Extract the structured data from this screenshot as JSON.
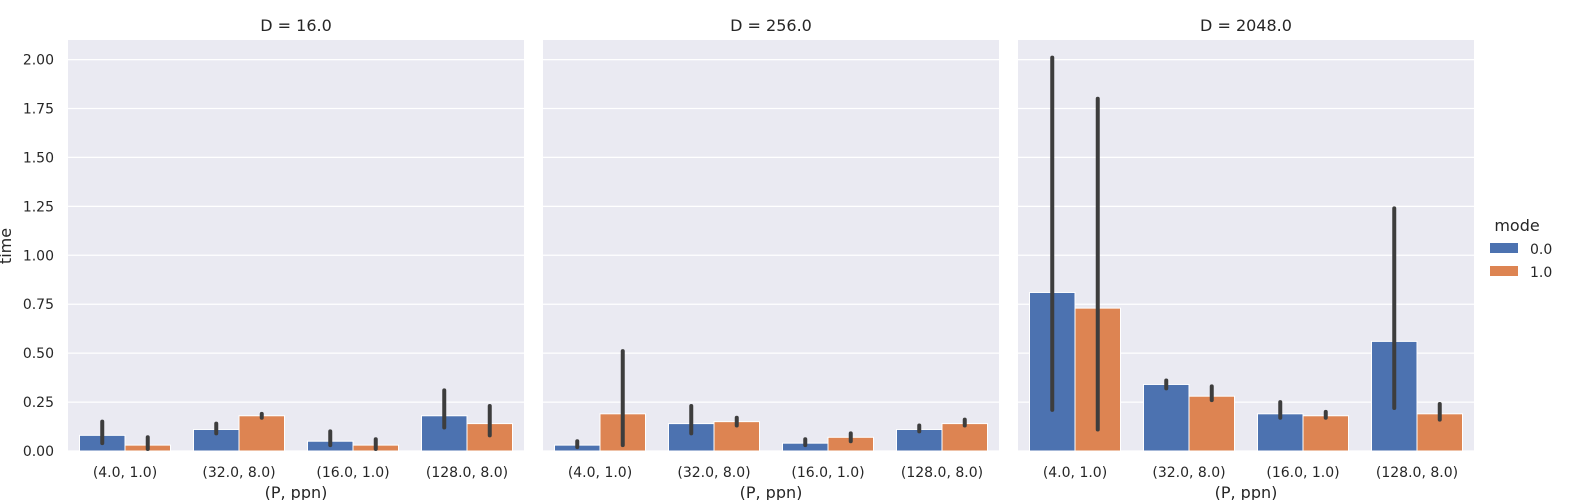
{
  "chart_data": {
    "type": "bar",
    "ylabel": "time",
    "xlabel": "(P, ppn)",
    "ylim": [
      0,
      2.1
    ],
    "yticks": [
      "0.00",
      "0.25",
      "0.50",
      "0.75",
      "1.00",
      "1.25",
      "1.50",
      "1.75",
      "2.00"
    ],
    "grid": true,
    "legend": {
      "title": "mode",
      "placement": "right",
      "entries": [
        {
          "label": "0.0",
          "color": "#4c72b0"
        },
        {
          "label": "1.0",
          "color": "#dd8452"
        }
      ]
    },
    "categories": [
      "(4.0, 1.0)",
      "(32.0, 8.0)",
      "(16.0, 1.0)",
      "(128.0, 8.0)"
    ],
    "panels": [
      {
        "title": "D = 16.0",
        "series": [
          {
            "mode": "0.0",
            "values": [
              0.08,
              0.11,
              0.05,
              0.18
            ],
            "ci_low": [
              0.04,
              0.09,
              0.03,
              0.12
            ],
            "ci_high": [
              0.15,
              0.14,
              0.1,
              0.31
            ]
          },
          {
            "mode": "1.0",
            "values": [
              0.03,
              0.18,
              0.03,
              0.14
            ],
            "ci_low": [
              0.01,
              0.17,
              0.01,
              0.08
            ],
            "ci_high": [
              0.07,
              0.19,
              0.06,
              0.23
            ]
          }
        ]
      },
      {
        "title": "D = 256.0",
        "series": [
          {
            "mode": "0.0",
            "values": [
              0.03,
              0.14,
              0.04,
              0.11
            ],
            "ci_low": [
              0.02,
              0.09,
              0.03,
              0.1
            ],
            "ci_high": [
              0.05,
              0.23,
              0.06,
              0.13
            ]
          },
          {
            "mode": "1.0",
            "values": [
              0.19,
              0.15,
              0.07,
              0.14
            ],
            "ci_low": [
              0.03,
              0.13,
              0.05,
              0.13
            ],
            "ci_high": [
              0.51,
              0.17,
              0.09,
              0.16
            ]
          }
        ]
      },
      {
        "title": "D = 2048.0",
        "series": [
          {
            "mode": "0.0",
            "values": [
              0.81,
              0.34,
              0.19,
              0.56
            ],
            "ci_low": [
              0.21,
              0.32,
              0.17,
              0.22
            ],
            "ci_high": [
              2.01,
              0.36,
              0.25,
              1.24
            ]
          },
          {
            "mode": "1.0",
            "values": [
              0.73,
              0.28,
              0.18,
              0.19
            ],
            "ci_low": [
              0.11,
              0.26,
              0.17,
              0.16
            ],
            "ci_high": [
              1.8,
              0.33,
              0.2,
              0.24
            ]
          }
        ]
      }
    ]
  }
}
